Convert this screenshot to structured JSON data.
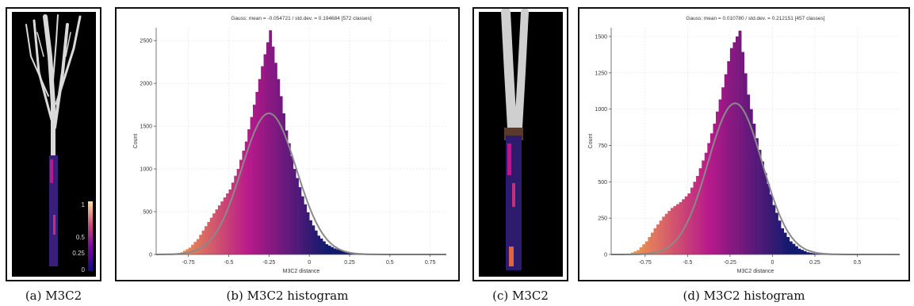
{
  "captions": {
    "a": "(a) M3C2",
    "b": "(b) M3C2 histogram",
    "c": "(c) M3C2",
    "d": "(d) M3C2 histogram"
  },
  "colorbar": {
    "ticks": [
      "1",
      "0.5",
      "0.25",
      "0"
    ]
  },
  "colors": {
    "gauss_curve": "#8a8a8a",
    "low_distance": "#f2a14a",
    "mid_distance": "#b8198a",
    "high_distance": "#121a6e"
  },
  "chart_data": [
    {
      "type": "bar",
      "title": "Gauss: mean = -0.054721 / std.dev. = 0.194684 [572 classes]",
      "xlabel": "M3C2 distance",
      "ylabel": "Count",
      "xlim": [
        -0.95,
        0.85
      ],
      "ylim": [
        0,
        2650
      ],
      "xticks": [
        -0.75,
        -0.5,
        -0.25,
        0,
        0.25,
        0.5,
        0.75
      ],
      "xtick_labels": [
        "-0.75",
        "-0.5",
        "-0.25",
        "0",
        "0.25",
        "0.5",
        "0.75"
      ],
      "yticks": [
        0,
        500,
        1000,
        1500,
        2000,
        2500
      ],
      "ytick_labels": [
        "0",
        "500",
        "1000",
        "1500",
        "2000",
        "2500"
      ],
      "histogram_x": [
        -0.85,
        -0.8,
        -0.75,
        -0.7,
        -0.65,
        -0.6,
        -0.55,
        -0.5,
        -0.45,
        -0.4,
        -0.35,
        -0.3,
        -0.25,
        -0.2,
        -0.15,
        -0.1,
        -0.05,
        0,
        0.05,
        0.1,
        0.15,
        0.2,
        0.25,
        0.3,
        0.35
      ],
      "histogram_counts": [
        5,
        25,
        80,
        180,
        330,
        480,
        620,
        760,
        1000,
        1320,
        1750,
        2200,
        2620,
        2050,
        1450,
        1000,
        680,
        400,
        220,
        120,
        70,
        40,
        20,
        8,
        2
      ],
      "gauss_fit": {
        "peak_x": -0.25,
        "peak_count": 1650,
        "sigma": 0.17
      }
    },
    {
      "type": "bar",
      "title": "Gauss: mean = 0.010780 / std.dev. = 0.212151 [457 classes]",
      "xlabel": "M3C2 distance",
      "ylabel": "Count",
      "xlim": [
        -0.95,
        0.75
      ],
      "ylim": [
        0,
        1560
      ],
      "xticks": [
        -0.75,
        -0.5,
        -0.25,
        0,
        0.25,
        0.5
      ],
      "xtick_labels": [
        "-0.75",
        "-0.5",
        "-0.25",
        "0",
        "0.25",
        "0.5"
      ],
      "yticks": [
        0,
        250,
        500,
        750,
        1000,
        1250,
        1500
      ],
      "ytick_labels": [
        "0",
        "250",
        "500",
        "750",
        "1000",
        "1250",
        "1500"
      ],
      "histogram_x": [
        -0.85,
        -0.8,
        -0.75,
        -0.7,
        -0.65,
        -0.6,
        -0.55,
        -0.5,
        -0.45,
        -0.4,
        -0.35,
        -0.3,
        -0.25,
        -0.2,
        -0.15,
        -0.1,
        -0.05,
        0,
        0.05,
        0.1,
        0.15,
        0.2,
        0.25,
        0.3
      ],
      "histogram_counts": [
        5,
        30,
        90,
        180,
        260,
        320,
        360,
        420,
        540,
        700,
        900,
        1150,
        1420,
        1540,
        1100,
        800,
        560,
        340,
        180,
        90,
        40,
        15,
        5,
        2
      ],
      "gauss_fit": {
        "peak_x": -0.22,
        "peak_count": 1040,
        "sigma": 0.16
      }
    }
  ]
}
